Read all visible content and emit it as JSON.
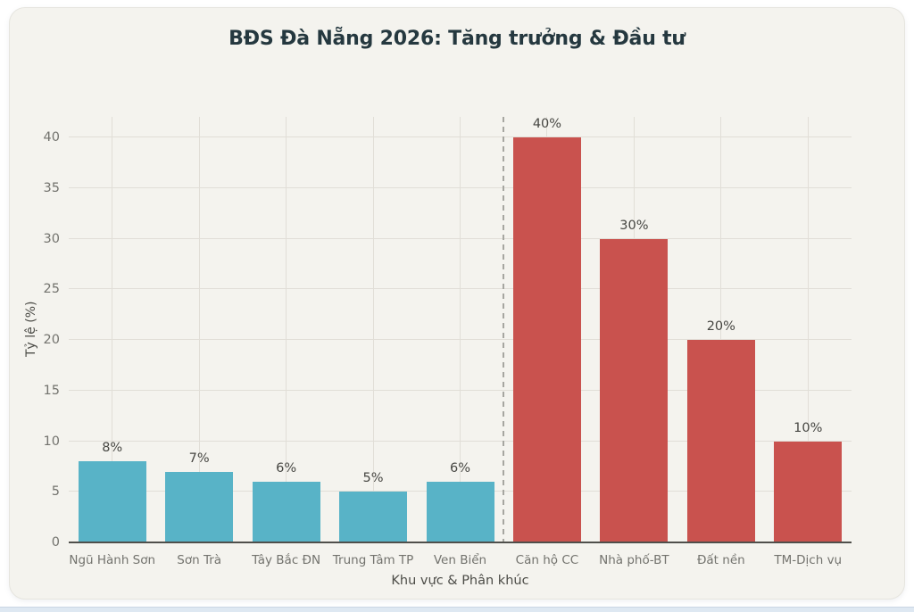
{
  "window": {
    "background": "#ffffff",
    "bottom_strip_color": "#dee8f2"
  },
  "card": {
    "background": "#f4f3ee",
    "border_color": "#e6e5df"
  },
  "chart_data": {
    "type": "bar",
    "title": "BĐS Đà Nẵng 2026: Tăng trưởng & Đầu tư",
    "xlabel": "Khu vực & Phân khúc",
    "ylabel": "Tỷ lệ (%)",
    "categories": [
      "Ngũ Hành Sơn",
      "Sơn Trà",
      "Tây Bắc ĐN",
      "Trung Tâm TP",
      "Ven Biển",
      "Căn hộ CC",
      "Nhà phố-BT",
      "Đất nền",
      "TM-Dịch vụ"
    ],
    "values": [
      8,
      7,
      6,
      5,
      6,
      40,
      30,
      20,
      10
    ],
    "value_label_suffix": "%",
    "value_labels": [
      "8%",
      "7%",
      "6%",
      "5%",
      "6%",
      "40%",
      "30%",
      "20%",
      "10%"
    ],
    "bar_colors": [
      "#58b3c7",
      "#58b3c7",
      "#58b3c7",
      "#58b3c7",
      "#58b3c7",
      "#c9524e",
      "#c9524e",
      "#c9524e",
      "#c9524e"
    ],
    "ylim": [
      0,
      40
    ],
    "yticks": [
      0,
      5,
      10,
      15,
      20,
      25,
      30,
      35,
      40
    ],
    "grid": true,
    "legend_position": "none",
    "separator_after_category": "Ven Biển",
    "colors": {
      "growth_teal": "#58b3c7",
      "investment_red": "#c9524e",
      "grid": "#e1ded7",
      "axis_line": "#4f4f4b",
      "separator_dashed": "#a6a6a0",
      "title_text": "#25383f",
      "tick_text": "#73736e",
      "value_label_text": "#474743",
      "axis_title_text": "#4c4c47"
    }
  }
}
